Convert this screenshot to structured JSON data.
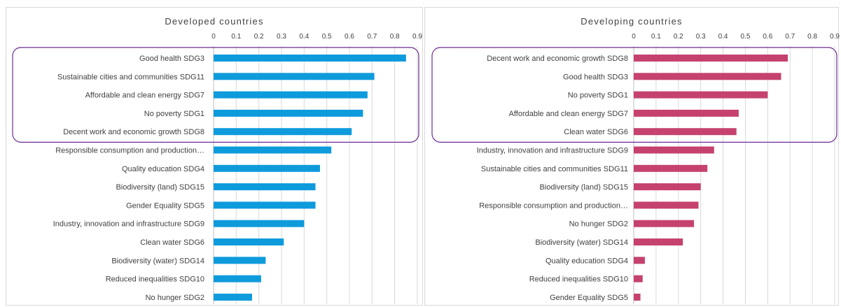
{
  "chart_data": [
    {
      "type": "bar",
      "orientation": "horizontal",
      "title": "Developed countries",
      "categories": [
        "Good health SDG3",
        "Sustainable cities and communities SDG11",
        "Affordable and clean energy SDG7",
        "No poverty SDG1",
        "Decent work and economic growth SDG8",
        "Responsible consumption and production…",
        "Quality education SDG4",
        "Biodiversity (land) SDG15",
        "Gender Equality SDG5",
        "Industry, innovation and infrastructure SDG9",
        "Clean water SDG6",
        "Biodiversity (water) SDG14",
        "Reduced inequalities SDG10",
        "No hunger SDG2"
      ],
      "values": [
        0.85,
        0.71,
        0.68,
        0.66,
        0.61,
        0.52,
        0.47,
        0.45,
        0.45,
        0.4,
        0.31,
        0.23,
        0.21,
        0.17
      ],
      "xlim": [
        0,
        0.9
      ],
      "ticks": [
        "0",
        "0.1",
        "0.2",
        "0.3",
        "0.4",
        "0.5",
        "0.6",
        "0.7",
        "0.8",
        "0.9"
      ],
      "highlight_count": 5,
      "color": "#0e9bdc",
      "highlight_color": "#6b2c91",
      "grid": true,
      "xlabel": "",
      "ylabel": ""
    },
    {
      "type": "bar",
      "orientation": "horizontal",
      "title": "Developing countries",
      "categories": [
        "Decent work and economic growth SDG8",
        "Good health SDG3",
        "No poverty SDG1",
        "Affordable and clean energy SDG7",
        "Clean water SDG6",
        "Industry, innovation and infrastructure SDG9",
        "Sustainable cities and communities SDG11",
        "Biodiversity (land) SDG15",
        "Responsible consumption and production…",
        "No hunger SDG2",
        "Biodiversity (water) SDG14",
        "Quality education SDG4",
        "Reduced inequalities SDG10",
        "Gender Equality SDG5"
      ],
      "values": [
        0.69,
        0.66,
        0.6,
        0.47,
        0.46,
        0.36,
        0.33,
        0.3,
        0.29,
        0.27,
        0.22,
        0.05,
        0.04,
        0.03
      ],
      "xlim": [
        0,
        0.9
      ],
      "ticks": [
        "0",
        "0.1",
        "0.2",
        "0.3",
        "0.4",
        "0.5",
        "0.6",
        "0.7",
        "0.8",
        "0.9"
      ],
      "highlight_count": 5,
      "color": "#c5426f",
      "highlight_color": "#6b2c91",
      "grid": true,
      "xlabel": "",
      "ylabel": ""
    }
  ]
}
